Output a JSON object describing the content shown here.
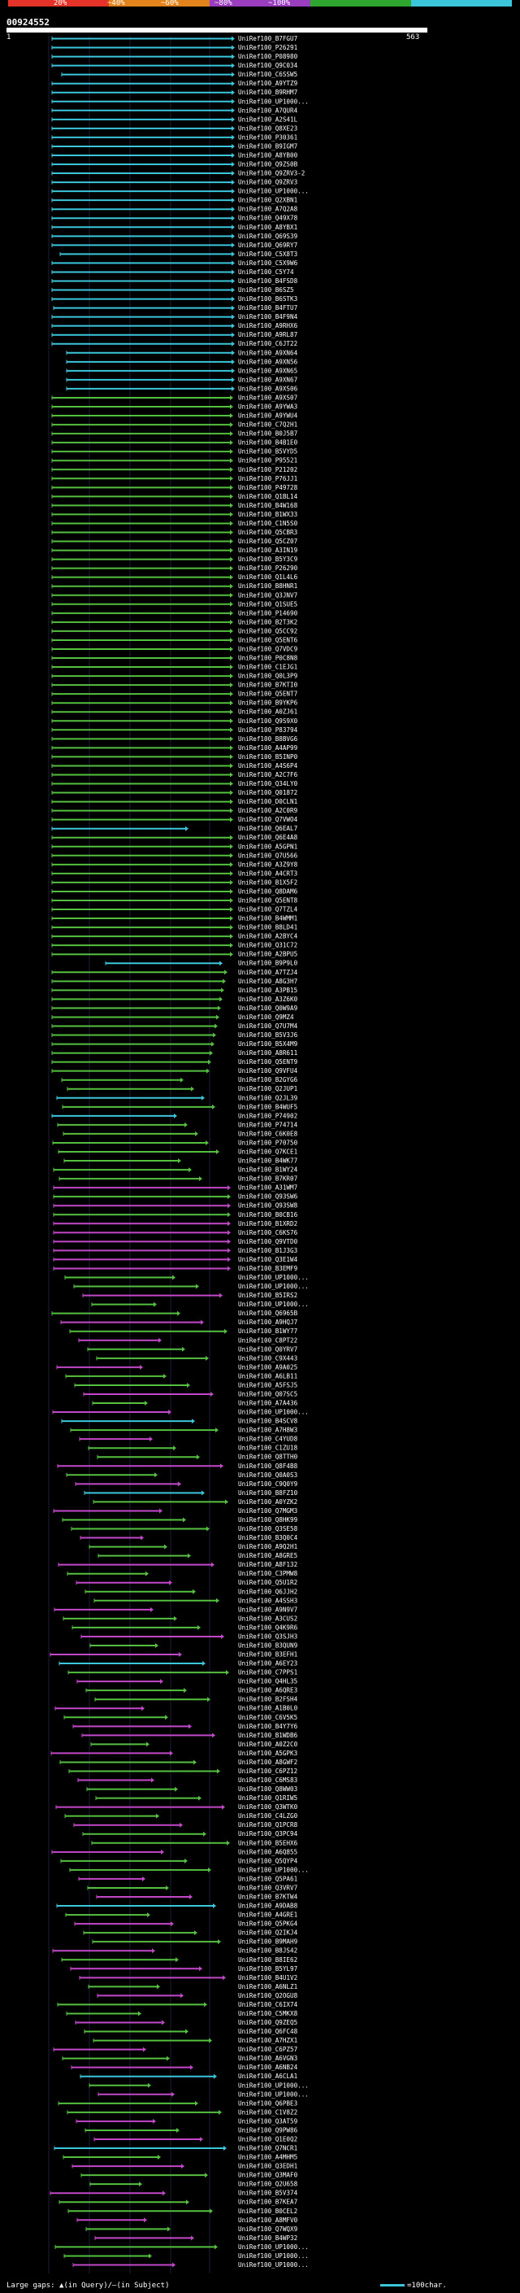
{
  "chart_data": {
    "type": "blast-alignment-overview",
    "query_id": "00924552",
    "query_start": 1,
    "query_end": 563,
    "scale": {
      "segments": [
        {
          "label": "20%",
          "color": "#e5332a"
        },
        {
          "label": "~40%",
          "color": "#e3831c"
        },
        {
          "label": "~60%",
          "color": "#9b3dbf"
        },
        {
          "label": "~80%",
          "color": "#2fa62f"
        },
        {
          "label": "~100%",
          "color": "#3cc6dc"
        }
      ]
    },
    "palette": {
      "identity_100": "#3cc6dc",
      "identity_80": "#55bf40",
      "identity_60": "#c248c9"
    },
    "hits": [
      "UniRef100_B7FGU7",
      "UniRef100_P26291",
      "UniRef100_P08980",
      "UniRef100_Q9C034",
      "UniRef100_C6SSW5",
      "UniRef100_A9YTZ9",
      "UniRef100_B9RHM7",
      "UniRef100_UP1000...",
      "UniRef100_A7QUR4",
      "UniRef100_A2S41L",
      "UniRef100_Q8XE23",
      "UniRef100_P30361",
      "UniRef100_B9IGM7",
      "UniRef100_A8YB00",
      "UniRef100_Q9ZS0B",
      "UniRef100_Q9ZRV3-2",
      "UniRef100_Q9ZRV3",
      "UniRef100_UP1000...",
      "UniRef100_Q2XBN1",
      "UniRef100_A7Q2A8",
      "UniRef100_Q49X78",
      "UniRef100_A8YBX1",
      "UniRef100_Q69S39",
      "UniRef100_Q69RY7",
      "UniRef100_C5X8T3",
      "UniRef100_C5X9W6",
      "UniRef100_C5Y74",
      "UniRef100_B4FSD8",
      "UniRef100_B6SZ5",
      "UniRef100_B6STK3",
      "UniRef100_B4FTU7",
      "UniRef100_B4F9N4",
      "UniRef100_A9RHX6",
      "UniRef100_A9RL87",
      "UniRef100_C6JT22",
      "UniRef100_A9XN64",
      "UniRef100_A9XN56",
      "UniRef100_A9XN65",
      "UniRef100_A9XN67",
      "UniRef100_A9XS06",
      "UniRef100_A9XS07",
      "UniRef100_A9YWA3",
      "UniRef100_A9YWU4",
      "UniRef100_C7Q2H1",
      "UniRef100_B0J5B7",
      "UniRef100_B4B1E0",
      "UniRef100_B5VYD5",
      "UniRef100_P95521",
      "UniRef100_P21202",
      "UniRef100_P76JJ1",
      "UniRef100_P49728",
      "UniRef100_Q1BL14",
      "UniRef100_B4W168",
      "UniRef100_B1WX33",
      "UniRef100_C1N5S0",
      "UniRef100_Q5CBR3",
      "UniRef100_Q5CZ07",
      "UniRef100_A3IN19",
      "UniRef100_B5Y3C9",
      "UniRef100_P26290",
      "UniRef100_Q1L4L6",
      "UniRef100_B8HNR1",
      "UniRef100_Q3JNV7",
      "UniRef100_Q1SUE5",
      "UniRef100_P14690",
      "UniRef100_B2T3K2",
      "UniRef100_Q5CC92",
      "UniRef100_Q5ENT6",
      "UniRef100_Q7VDC9",
      "UniRef100_P0C8N8",
      "UniRef100_C1EJG1",
      "UniRef100_Q0L3P9",
      "UniRef100_B7KTI0",
      "UniRef100_Q5ENT7",
      "UniRef100_B9YKP6",
      "UniRef100_A0ZJ61",
      "UniRef100_Q9S9X0",
      "UniRef100_P83794",
      "UniRef100_B8BVG6",
      "UniRef100_A4AP99",
      "UniRef100_B5INP0",
      "UniRef100_A4S6P4",
      "UniRef100_A2C7F6",
      "UniRef100_Q34LY0",
      "UniRef100_Q01872",
      "UniRef100_D0CLN1",
      "UniRef100_A2C0R9",
      "UniRef100_Q7VWO4",
      "UniRef100_Q6EAL7",
      "UniRef100_Q6E4A8",
      "UniRef100_A5GPN1",
      "UniRef100_Q7U566",
      "UniRef100_A3Z9Y8",
      "UniRef100_A4CRT3",
      "UniRef100_B1X5F2",
      "UniRef100_Q8DAM6",
      "UniRef100_Q5ENT8",
      "UniRef100_Q7TZL4",
      "UniRef100_B4WMM1",
      "UniRef100_B8LD41",
      "UniRef100_A2BYC4",
      "UniRef100_Q31C72",
      "UniRef100_A2BPU5",
      "UniRef100_B9P9L0",
      "UniRef100_A7TZJ4",
      "UniRef100_A8G3H7",
      "UniRef100_A3PB15",
      "UniRef100_A3Z6K0",
      "UniRef100_Q0W9A9",
      "UniRef100_Q9MZ4",
      "UniRef100_Q7U7M4",
      "UniRef100_B5V3J6",
      "UniRef100_B5X4M9",
      "UniRef100_A8R611",
      "UniRef100_Q5ENT9",
      "UniRef100_Q9VFU4",
      "UniRef100_B2GYG6",
      "UniRef100_Q2JUP1",
      "UniRef100_Q2JL39",
      "UniRef100_B4WUF5",
      "UniRef100_P74902",
      "UniRef100_P74714",
      "UniRef100_C6K0E8",
      "UniRef100_P70750",
      "UniRef100_Q7KCE1",
      "UniRef100_B4WK77",
      "UniRef100_B1WY24",
      "UniRef100_B7KR07",
      "UniRef100_A31WM7",
      "UniRef100_Q93SW6",
      "UniRef100_Q93SW8",
      "UniRef100_B0CB16",
      "UniRef100_B1XRD2",
      "UniRef100_C6KS76",
      "UniRef100_Q9VTD0",
      "UniRef100_B1J3G3",
      "UniRef100_Q3E1W4",
      "UniRef100_B3EMF9",
      "UniRef100_UP1000...",
      "UniRef100_UP1000...",
      "UniRef100_B5IRS2",
      "UniRef100_UP1000...",
      "UniRef100_Q6965B",
      "UniRef100_A9HQJ7",
      "UniRef100_B1WY77",
      "UniRef100_C8PT22",
      "UniRef100_Q0YRV7",
      "UniRef100_C9X443",
      "UniRef100_A9A025",
      "UniRef100_A6LB11",
      "UniRef100_A5FSJ5",
      "UniRef100_Q07SC5",
      "UniRef100_A7A436",
      "UniRef100_UP1000...",
      "UniRef100_B4SCV8",
      "UniRef100_A7H8W3",
      "UniRef100_C4YUD8",
      "UniRef100_C1ZU18",
      "UniRef100_Q8TTH0",
      "UniRef100_Q8F4B8",
      "UniRef100_Q0A0S3",
      "UniRef100_C9Q0Y9",
      "UniRef100_B8FZ10",
      "UniRef100_A0YZK2",
      "UniRef100_Q7MGM3",
      "UniRef100_Q8HK99",
      "UniRef100_Q3SE58",
      "UniRef100_B3Q0C4",
      "UniRef100_A9Q2H1",
      "UniRef100_A8GRE5",
      "UniRef100_A8F132",
      "UniRef100_C3PMW8",
      "UniRef100_Q5U1R2",
      "UniRef100_Q6JJH2",
      "UniRef100_A4SSH3",
      "UniRef100_A9N9V7",
      "UniRef100_A3CUS2",
      "UniRef100_Q4K9R6",
      "UniRef100_Q3SJH3",
      "UniRef100_B3QUN9",
      "UniRef100_B3EFH1",
      "UniRef100_A6EY23",
      "UniRef100_C7PPS1",
      "UniRef100_Q4HL35",
      "UniRef100_A6QRE3",
      "UniRef100_B2FSH4",
      "UniRef100_A1B0L0",
      "UniRef100_C6V5K5",
      "UniRef100_B4Y7Y6",
      "UniRef100_B1WDB6",
      "UniRef100_A0Z2C0",
      "UniRef100_A5GPK3",
      "UniRef100_A8GWF2",
      "UniRef100_C6PZ12",
      "UniRef100_C6MS83",
      "UniRef100_Q8WW03",
      "UniRef100_Q1RIW5",
      "UniRef100_Q3WTK0",
      "UniRef100_C4LZG0",
      "UniRef100_Q1PCR8",
      "UniRef100_Q3PC94",
      "UniRef100_B5EHX6",
      "UniRef100_A6Q855",
      "UniRef100_Q5QYP4",
      "UniRef100_UP1000...",
      "UniRef100_Q5PA61",
      "UniRef100_Q3VRV7",
      "UniRef100_B7KTW4",
      "UniRef100_A9DAB8",
      "UniRef100_A4GRE1",
      "UniRef100_Q5PKG4",
      "UniRef100_Q2IKJ4",
      "UniRef100_B9MAH9",
      "UniRef100_B8JS42",
      "UniRef100_B8IE62",
      "UniRef100_B5YL97",
      "UniRef100_B4U1V2",
      "UniRef100_A6NLZ1",
      "UniRef100_Q2OGU8",
      "UniRef100_C6IX74",
      "UniRef100_C5MKX8",
      "UniRef100_Q9ZEQ5",
      "UniRef100_Q6FC48",
      "UniRef100_A7HZX1",
      "UniRef100_C6PZ57",
      "UniRef100_A6VGN3",
      "UniRef100_A6NB24",
      "UniRef100_A6CLA1",
      "UniRef100_UP1000...",
      "UniRef100_UP1000...",
      "UniRef100_Q6PBE3",
      "UniRef100_C1V8Z2",
      "UniRef100_Q3AT59",
      "UniRef100_Q9PW86",
      "UniRef100_Q1E0Q2",
      "UniRef100_Q7NCR1",
      "UniRef100_A4MHM5",
      "UniRef100_Q3EDH1",
      "UniRef100_Q3MAF0",
      "UniRef100_Q2U658",
      "UniRef100_B5V374",
      "UniRef100_B7KEA7",
      "UniRef100_B0CEL2",
      "UniRef100_A8MFV0",
      "UniRef100_Q7WQX9",
      "UniRef100_B4WP32",
      "UniRef100_UP1000...",
      "UniRef100_UP1000...",
      "UniRef100_UP1000..."
    ]
  },
  "header": {
    "query_id": "00924552",
    "pos_start": "1",
    "pos_end": "563"
  },
  "legend": {
    "left": "Large gaps: ▲(in Query)/—(in Subject)",
    "right": "=100char."
  }
}
